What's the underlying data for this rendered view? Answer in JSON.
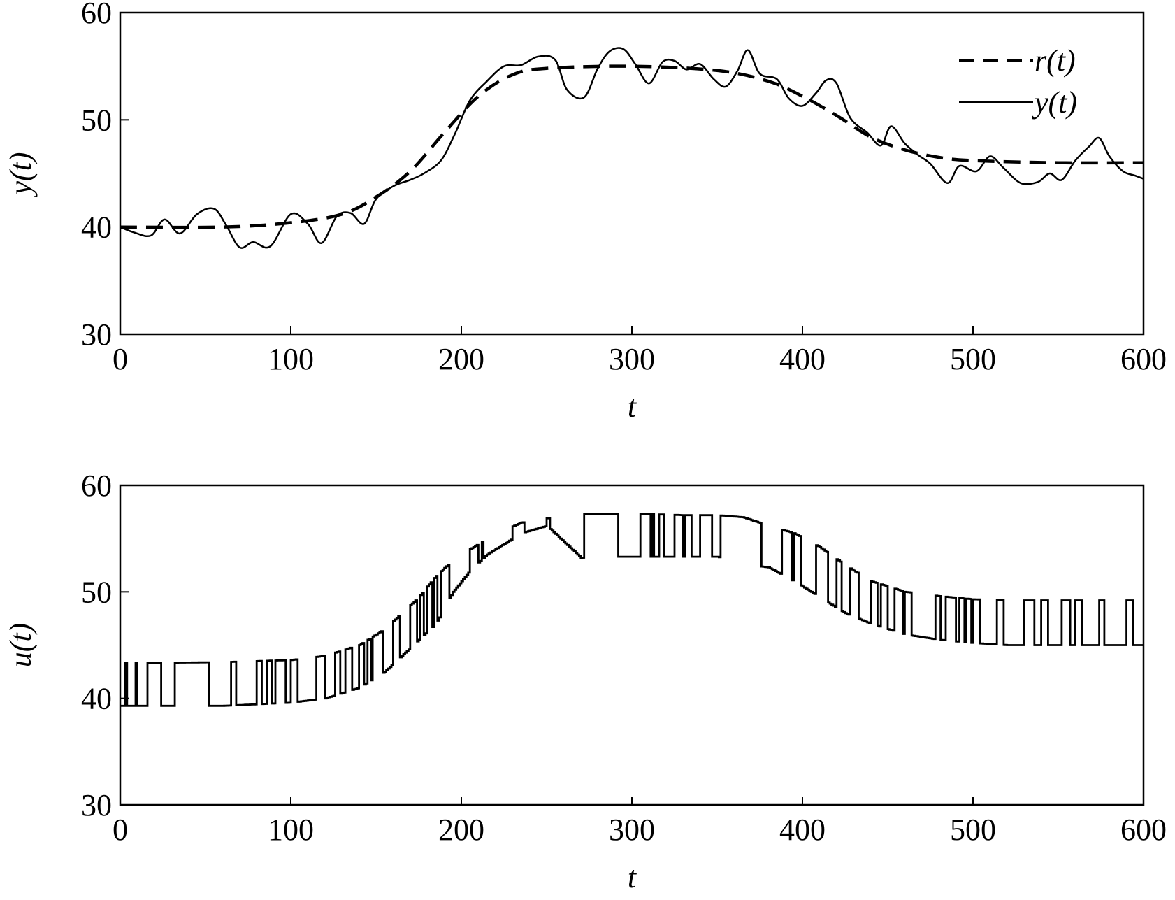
{
  "chart_data": [
    {
      "type": "line",
      "xlabel": "t",
      "ylabel": "y(t)",
      "xlim": [
        0,
        600
      ],
      "ylim": [
        30,
        60
      ],
      "xticks": [
        0,
        100,
        200,
        300,
        400,
        500,
        600
      ],
      "yticks": [
        30,
        40,
        50,
        60
      ],
      "grid": false,
      "legend_position": "top-right",
      "series": [
        {
          "name": "r(t)",
          "style": "dashed",
          "color": "#000000",
          "x": [
            0,
            60,
            100,
            130,
            150,
            170,
            190,
            210,
            230,
            250,
            300,
            350,
            380,
            400,
            420,
            440,
            460,
            480,
            500,
            550,
            600
          ],
          "y": [
            40,
            40,
            40.4,
            41.2,
            42.8,
            45.2,
            48.8,
            52.2,
            54.2,
            54.8,
            55,
            54.6,
            53.6,
            52.2,
            50.4,
            48.4,
            47.2,
            46.5,
            46.2,
            46.0,
            46.0
          ]
        },
        {
          "name": "y(t)",
          "style": "solid",
          "color": "#000000",
          "x": [
            0,
            8,
            18,
            26,
            35,
            45,
            55,
            62,
            70,
            78,
            88,
            100,
            110,
            118,
            127,
            135,
            143,
            150,
            160,
            170,
            178,
            188,
            196,
            205,
            215,
            225,
            235,
            245,
            255,
            262,
            272,
            280,
            287,
            295,
            302,
            310,
            318,
            325,
            332,
            340,
            348,
            355,
            362,
            368,
            375,
            385,
            392,
            400,
            408,
            414,
            420,
            428,
            438,
            446,
            452,
            460,
            468,
            475,
            485,
            492,
            502,
            510,
            518,
            528,
            538,
            545,
            552,
            560,
            568,
            574,
            580,
            588,
            595,
            600
          ],
          "y": [
            40,
            39.5,
            39.2,
            40.7,
            39.4,
            41.2,
            41.7,
            40.2,
            38.1,
            38.6,
            38.2,
            41.2,
            40.3,
            38.5,
            41.0,
            41.3,
            40.3,
            42.6,
            43.8,
            44.4,
            45.0,
            46.2,
            48.6,
            51.8,
            53.6,
            55.0,
            55.1,
            55.9,
            55.6,
            52.8,
            52.1,
            54.8,
            56.4,
            56.6,
            55.2,
            53.4,
            55.4,
            55.5,
            54.7,
            55.2,
            53.8,
            53.1,
            54.6,
            56.5,
            54.3,
            53.8,
            52.0,
            51.3,
            52.5,
            53.7,
            53.4,
            50.2,
            48.8,
            47.6,
            49.4,
            47.8,
            46.7,
            45.9,
            44.1,
            45.7,
            45.2,
            46.6,
            45.5,
            44.1,
            44.2,
            45.0,
            44.4,
            46.2,
            47.5,
            48.3,
            46.6,
            45.2,
            44.8,
            44.5
          ]
        }
      ]
    },
    {
      "type": "line",
      "xlabel": "t",
      "ylabel": "u(t)",
      "xlim": [
        0,
        600
      ],
      "ylim": [
        30,
        60
      ],
      "xticks": [
        0,
        100,
        200,
        300,
        400,
        500,
        600
      ],
      "yticks": [
        30,
        40,
        50,
        60
      ],
      "grid": false,
      "series": [
        {
          "style": "step",
          "color": "#000000",
          "baseline_x": [
            0,
            60,
            100,
            120,
            140,
            155,
            165,
            175,
            185,
            195,
            205,
            215,
            225,
            235,
            250,
            270,
            290,
            310,
            330,
            350,
            365,
            380,
            395,
            410,
            425,
            440,
            460,
            480,
            500,
            520,
            540,
            560,
            580,
            600
          ],
          "baseline_y": [
            39.3,
            39.3,
            39.6,
            40.0,
            41.0,
            42.5,
            44.0,
            45.5,
            47.0,
            50.0,
            52.0,
            53.5,
            54.5,
            55.5,
            56.2,
            53.2,
            53.3,
            53.3,
            53.3,
            53.3,
            52.6,
            52.3,
            51.0,
            49.5,
            48.0,
            47.0,
            46.0,
            45.5,
            45.2,
            45.0,
            45.0,
            45.0,
            45.0,
            45.0
          ],
          "upper_x": [
            0,
            60,
            100,
            120,
            140,
            155,
            165,
            175,
            185,
            195,
            205,
            215,
            225,
            235,
            250,
            270,
            290,
            310,
            330,
            350,
            365,
            380,
            395,
            410,
            425,
            440,
            460,
            480,
            500,
            520,
            540,
            560,
            580,
            600
          ],
          "upper_y": [
            43.3,
            43.4,
            43.6,
            44.0,
            45.0,
            46.5,
            48.0,
            49.5,
            51.5,
            53.0,
            54.0,
            55.0,
            55.8,
            56.5,
            56.9,
            57.3,
            57.3,
            57.3,
            57.2,
            57.2,
            57.0,
            56.2,
            55.5,
            54.2,
            52.5,
            51.0,
            50.0,
            49.6,
            49.3,
            49.2,
            49.2,
            49.2,
            49.2,
            49.2
          ],
          "pulses": [
            [
              3,
              1
            ],
            [
              9,
              1
            ],
            [
              16,
              8
            ],
            [
              32,
              20
            ],
            [
              65,
              3
            ],
            [
              80,
              3
            ],
            [
              86,
              3
            ],
            [
              91,
              6
            ],
            [
              100,
              4
            ],
            [
              115,
              5
            ],
            [
              126,
              3
            ],
            [
              132,
              4
            ],
            [
              140,
              3
            ],
            [
              145,
              2
            ],
            [
              148,
              6
            ],
            [
              160,
              4
            ],
            [
              170,
              4
            ],
            [
              176,
              2
            ],
            [
              180,
              3
            ],
            [
              184,
              2
            ],
            [
              188,
              5
            ],
            [
              205,
              5
            ],
            [
              212,
              1
            ],
            [
              230,
              7
            ],
            [
              250,
              2
            ],
            [
              272,
              20
            ],
            [
              305,
              6
            ],
            [
              312,
              1
            ],
            [
              316,
              3
            ],
            [
              325,
              5
            ],
            [
              331,
              4
            ],
            [
              340,
              7
            ],
            [
              352,
              20
            ],
            [
              368,
              8
            ],
            [
              388,
              6
            ],
            [
              395,
              4
            ],
            [
              408,
              4
            ],
            [
              412,
              3
            ],
            [
              420,
              3
            ],
            [
              428,
              5
            ],
            [
              440,
              4
            ],
            [
              446,
              4
            ],
            [
              454,
              5
            ],
            [
              460,
              4
            ],
            [
              478,
              3
            ],
            [
              484,
              4
            ],
            [
              488,
              2
            ],
            [
              492,
              3
            ],
            [
              496,
              3
            ],
            [
              500,
              4
            ],
            [
              514,
              4
            ],
            [
              530,
              4
            ],
            [
              534,
              2
            ],
            [
              540,
              4
            ],
            [
              552,
              5
            ],
            [
              560,
              4
            ],
            [
              574,
              3
            ],
            [
              590,
              4
            ]
          ]
        }
      ]
    }
  ]
}
